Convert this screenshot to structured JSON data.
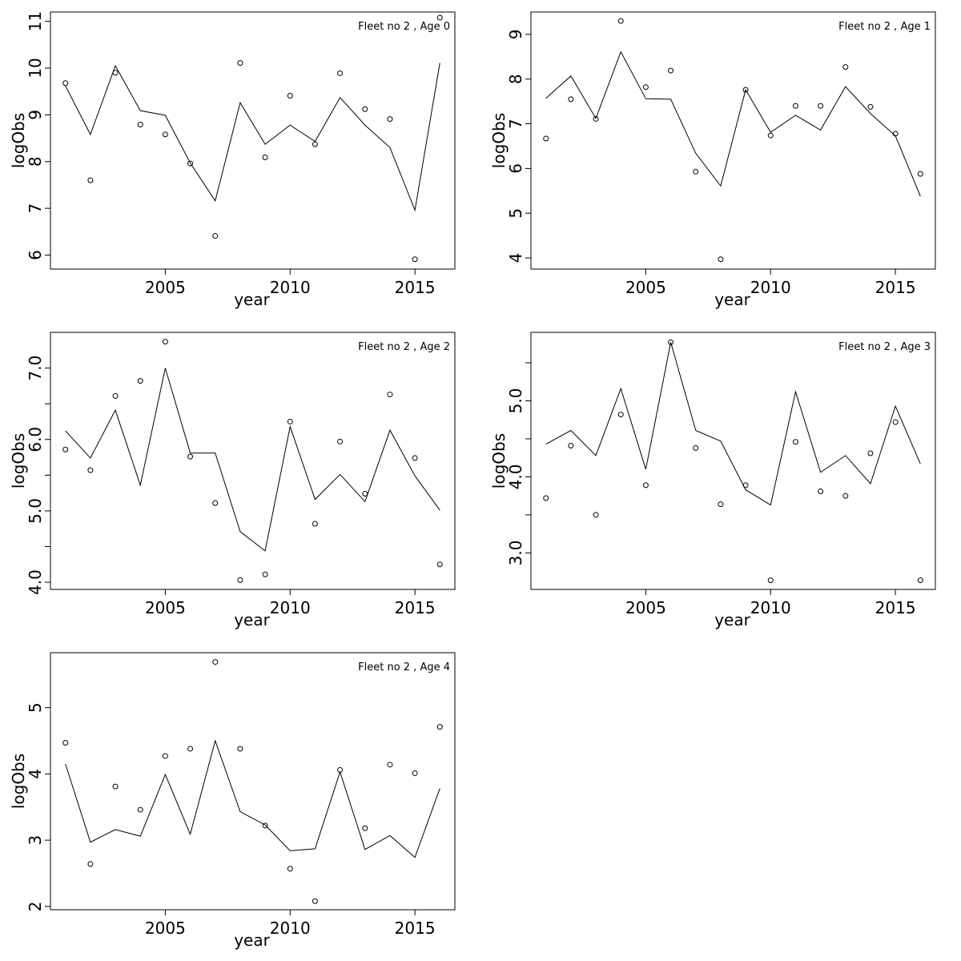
{
  "chart_data": [
    {
      "type": "scatter",
      "title": "Fleet no 2 , Age 0",
      "xlabel": "year",
      "ylabel": "logObs",
      "grid": false,
      "xlim": [
        2000.4,
        2016.6
      ],
      "ylim": [
        5.7,
        11.2
      ],
      "xticks": [
        "2005",
        "2010",
        "2015"
      ],
      "yticks": [
        "6",
        "7",
        "8",
        "9",
        "10",
        "11"
      ],
      "x": [
        2001,
        2002,
        2003,
        2004,
        2005,
        2006,
        2007,
        2008,
        2009,
        2010,
        2011,
        2012,
        2013,
        2014,
        2015,
        2016
      ],
      "series": [
        {
          "kind": "points",
          "values": [
            9.68,
            7.6,
            9.9,
            8.79,
            8.58,
            7.96,
            6.41,
            10.11,
            8.09,
            9.41,
            8.37,
            9.89,
            9.12,
            8.91,
            5.91,
            11.08
          ]
        },
        {
          "kind": "line",
          "values": [
            9.62,
            8.58,
            10.05,
            9.09,
            8.99,
            7.97,
            7.16,
            9.26,
            8.37,
            8.78,
            8.43,
            9.37,
            8.78,
            8.3,
            6.96,
            10.11
          ]
        }
      ]
    },
    {
      "type": "scatter",
      "title": "Fleet no 2 , Age 1",
      "xlabel": "year",
      "ylabel": "logObs",
      "grid": false,
      "xlim": [
        2000.4,
        2016.6
      ],
      "ylim": [
        3.75,
        9.5
      ],
      "xticks": [
        "2005",
        "2010",
        "2015"
      ],
      "yticks": [
        "4",
        "5",
        "6",
        "7",
        "8",
        "9"
      ],
      "x": [
        2001,
        2002,
        2003,
        2004,
        2005,
        2006,
        2007,
        2008,
        2009,
        2010,
        2011,
        2012,
        2013,
        2014,
        2015,
        2016
      ],
      "series": [
        {
          "kind": "points",
          "values": [
            6.67,
            7.55,
            7.11,
            9.3,
            7.82,
            8.19,
            5.93,
            3.97,
            7.76,
            6.74,
            7.4,
            7.4,
            8.27,
            7.38,
            6.78,
            5.88
          ]
        },
        {
          "kind": "line",
          "values": [
            7.57,
            8.07,
            7.12,
            8.61,
            7.56,
            7.55,
            6.34,
            5.61,
            7.76,
            6.81,
            7.19,
            6.86,
            7.83,
            7.23,
            6.73,
            5.38
          ]
        }
      ]
    },
    {
      "type": "scatter",
      "title": "Fleet no 2 , Age 2",
      "xlabel": "year",
      "ylabel": "logObs",
      "grid": false,
      "xlim": [
        2000.4,
        2016.6
      ],
      "ylim": [
        3.9,
        7.5
      ],
      "xticks": [
        "2005",
        "2010",
        "2015"
      ],
      "yticks": [
        "4.0",
        "5.0",
        "6.0",
        "7.0"
      ],
      "yticks_unlabeled": [
        4.5,
        5.5,
        6.5
      ],
      "x": [
        2001,
        2002,
        2003,
        2004,
        2005,
        2006,
        2007,
        2008,
        2009,
        2010,
        2011,
        2012,
        2013,
        2014,
        2015,
        2016
      ],
      "series": [
        {
          "kind": "points",
          "values": [
            5.86,
            5.57,
            6.61,
            6.82,
            7.37,
            5.76,
            5.11,
            4.03,
            4.11,
            6.25,
            4.82,
            5.97,
            5.24,
            6.63,
            5.74,
            4.25
          ]
        },
        {
          "kind": "line",
          "values": [
            6.12,
            5.74,
            6.41,
            5.36,
            7.0,
            5.81,
            5.81,
            4.71,
            4.44,
            6.18,
            5.16,
            5.51,
            5.13,
            6.13,
            5.49,
            5.01
          ]
        }
      ]
    },
    {
      "type": "scatter",
      "title": "Fleet no 2 , Age 3",
      "xlabel": "year",
      "ylabel": "logObs",
      "grid": false,
      "xlim": [
        2000.4,
        2016.6
      ],
      "ylim": [
        2.52,
        5.9
      ],
      "xticks": [
        "2005",
        "2010",
        "2015"
      ],
      "yticks": [
        "3.0",
        "4.0",
        "5.0"
      ],
      "yticks_unlabeled": [
        3.5,
        4.5,
        5.5
      ],
      "x": [
        2001,
        2002,
        2003,
        2004,
        2005,
        2006,
        2007,
        2008,
        2009,
        2010,
        2011,
        2012,
        2013,
        2014,
        2015,
        2016
      ],
      "series": [
        {
          "kind": "points",
          "values": [
            3.72,
            4.41,
            3.5,
            4.82,
            3.89,
            5.77,
            4.38,
            3.64,
            3.89,
            2.64,
            4.46,
            3.81,
            3.75,
            4.31,
            4.72,
            2.64
          ]
        },
        {
          "kind": "line",
          "values": [
            4.43,
            4.61,
            4.28,
            5.16,
            4.1,
            5.77,
            4.61,
            4.47,
            3.83,
            3.63,
            5.12,
            4.06,
            4.28,
            3.91,
            4.93,
            4.17
          ]
        }
      ]
    },
    {
      "type": "scatter",
      "title": "Fleet no 2 , Age 4",
      "xlabel": "year",
      "ylabel": "logObs",
      "grid": false,
      "xlim": [
        2000.4,
        2016.6
      ],
      "ylim": [
        1.95,
        5.83
      ],
      "xticks": [
        "2005",
        "2010",
        "2015"
      ],
      "yticks": [
        "2",
        "3",
        "4",
        "5"
      ],
      "x": [
        2001,
        2002,
        2003,
        2004,
        2005,
        2006,
        2007,
        2008,
        2009,
        2010,
        2011,
        2012,
        2013,
        2014,
        2015,
        2016
      ],
      "series": [
        {
          "kind": "points",
          "values": [
            4.47,
            2.64,
            3.81,
            3.46,
            4.27,
            4.38,
            5.69,
            4.38,
            3.22,
            2.57,
            2.08,
            4.06,
            3.18,
            4.14,
            4.01,
            4.71
          ]
        },
        {
          "kind": "line",
          "values": [
            4.15,
            2.97,
            3.16,
            3.06,
            3.99,
            3.09,
            4.5,
            3.43,
            3.23,
            2.84,
            2.87,
            4.03,
            2.86,
            3.07,
            2.74,
            3.78
          ]
        }
      ]
    }
  ]
}
